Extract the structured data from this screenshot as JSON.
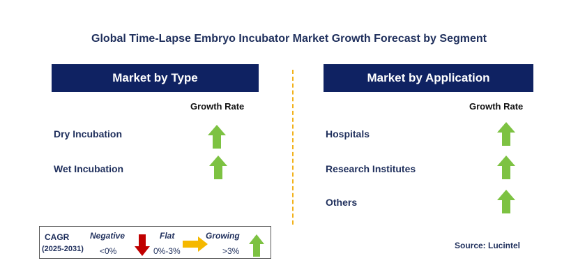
{
  "title": "Global Time-Lapse Embryo Incubator Market Growth Forecast by Segment",
  "left_panel": {
    "header": "Market by Type",
    "growth_label": "Growth Rate",
    "rows": [
      {
        "label": "Dry Incubation",
        "trend": "growing"
      },
      {
        "label": "Wet Incubation",
        "trend": "growing"
      }
    ]
  },
  "right_panel": {
    "header": "Market by Application",
    "growth_label": "Growth Rate",
    "rows": [
      {
        "label": "Hospitals",
        "trend": "growing"
      },
      {
        "label": "Research Institutes",
        "trend": "growing"
      },
      {
        "label": "Others",
        "trend": "growing"
      }
    ]
  },
  "legend": {
    "cagr": "CAGR",
    "period": "(2025-2031)",
    "negative": "Negative",
    "negative_range": "<0%",
    "flat": "Flat",
    "flat_range": "0%-3%",
    "growing": "Growing",
    "growing_range": ">3%"
  },
  "source": "Source: Lucintel",
  "colors": {
    "header_bg": "#0f2262",
    "growing": "#7dc242",
    "negative": "#c00000",
    "flat": "#f5b800",
    "divider": "#f2b21c"
  },
  "icons": {
    "growing": "green-up-arrow-icon",
    "negative": "red-down-arrow-icon",
    "flat": "yellow-right-arrow-icon"
  }
}
